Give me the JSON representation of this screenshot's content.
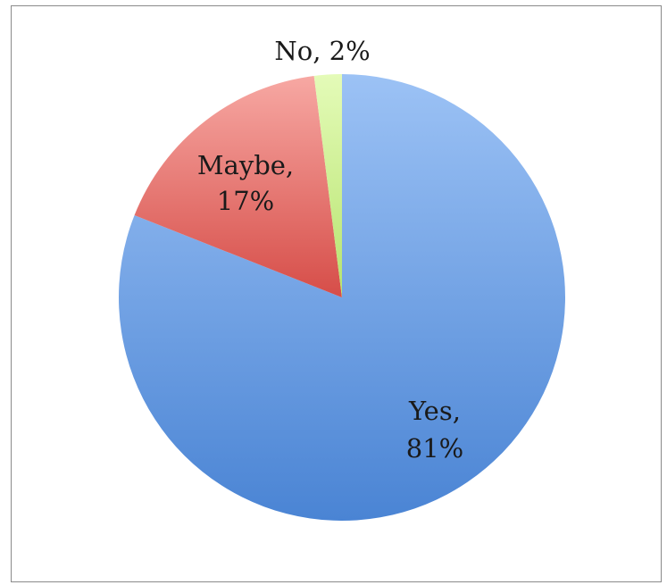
{
  "chart_data": {
    "type": "pie",
    "start_angle_deg": 0,
    "direction": "clockwise",
    "slices": [
      {
        "name": "Yes",
        "value": 81,
        "label_line1": "Yes,",
        "label_line2": "81%",
        "color_light": "#9cc2f5",
        "color_dark": "#4a84d4"
      },
      {
        "name": "Maybe",
        "value": 17,
        "label_line1": "Maybe,",
        "label_line2": "17%",
        "color_light": "#f7a8a3",
        "color_dark": "#d64d48"
      },
      {
        "name": "No",
        "value": 2,
        "label_line1": "No, 2%",
        "label_line2": "",
        "color_light": "#dcf7a8",
        "color_dark": "#b6e36e"
      }
    ],
    "labels": {
      "yes_1": "Yes,",
      "yes_2": "81%",
      "maybe_1": "Maybe,",
      "maybe_2": "17%",
      "no": "No, 2%"
    },
    "legend": "none",
    "border_color": "#8a8a8a"
  }
}
